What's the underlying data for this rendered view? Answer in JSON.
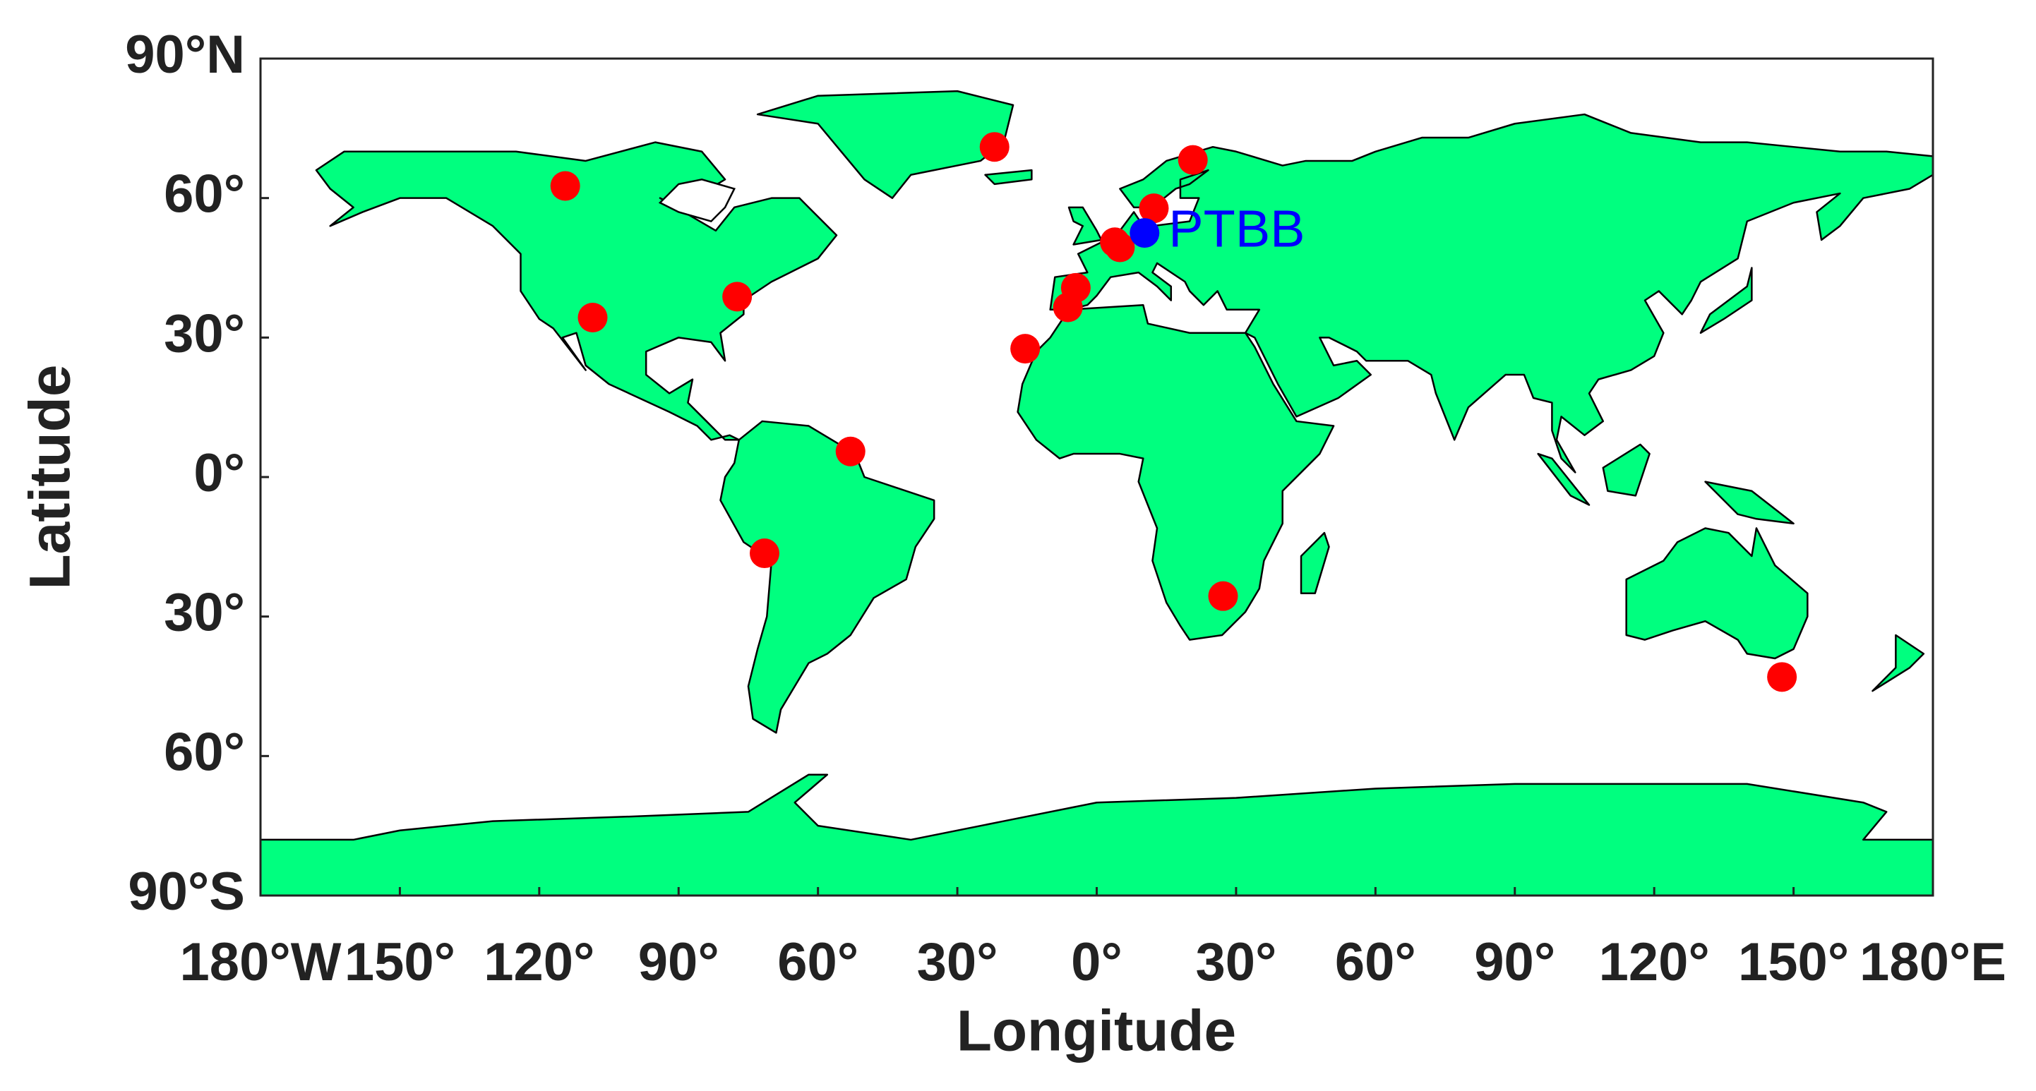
{
  "chart_data": {
    "type": "scatter",
    "xlabel": "Longitude",
    "ylabel": "Latitude",
    "xlim": [
      -180,
      180
    ],
    "ylim": [
      -90,
      90
    ],
    "xticks": [
      {
        "value": -180,
        "label": "180°W"
      },
      {
        "value": -150,
        "label": "150°"
      },
      {
        "value": -120,
        "label": "120°"
      },
      {
        "value": -90,
        "label": "90°"
      },
      {
        "value": -60,
        "label": "60°"
      },
      {
        "value": -30,
        "label": "30°"
      },
      {
        "value": 0,
        "label": "0°"
      },
      {
        "value": 30,
        "label": "30°"
      },
      {
        "value": 60,
        "label": "60°"
      },
      {
        "value": 90,
        "label": "90°"
      },
      {
        "value": 120,
        "label": "120°"
      },
      {
        "value": 150,
        "label": "150°"
      },
      {
        "value": 180,
        "label": "180°E"
      }
    ],
    "yticks": [
      {
        "value": 90,
        "label": "90°N"
      },
      {
        "value": 60,
        "label": "60°"
      },
      {
        "value": 30,
        "label": "30°"
      },
      {
        "value": 0,
        "label": "0°"
      },
      {
        "value": -30,
        "label": "30°"
      },
      {
        "value": -60,
        "label": "60°"
      },
      {
        "value": -90,
        "label": "90°S"
      }
    ],
    "series": [
      {
        "color": "#ff0000",
        "x": [
          -114.4,
          -108.5,
          -77.4,
          -53,
          -71.5,
          -22,
          -15.4,
          -6.2,
          -4.5,
          3.9,
          5,
          12.3,
          20.7,
          27.2,
          147.5
        ],
        "values": [
          62.6,
          34.3,
          38.8,
          5.5,
          -16.4,
          71,
          27.6,
          36.5,
          40.7,
          50.5,
          49.4,
          57.8,
          68.2,
          -25.6,
          -43
        ]
      },
      {
        "name": "PTBB",
        "color": "#0000ff",
        "x": [
          10.3
        ],
        "values": [
          52.5
        ]
      }
    ]
  }
}
